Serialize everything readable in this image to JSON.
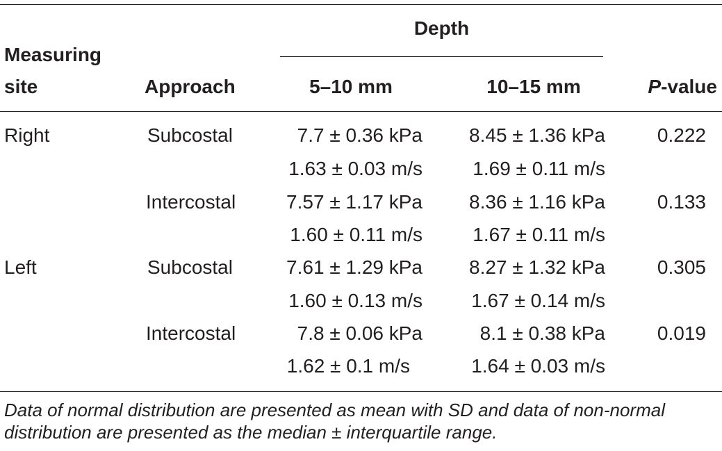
{
  "header": {
    "measuring_site_line1": "Measuring",
    "measuring_site_line2": "site",
    "approach": "Approach",
    "depth": "Depth",
    "depth_5_10": "5–10 mm",
    "depth_10_15": "10–15 mm",
    "p_value_italic": "P",
    "p_value_rest": "-value"
  },
  "rows": [
    {
      "site": "Right",
      "approach": "Subcostal",
      "d1": "7.7 ± 0.36 kPa",
      "d2": "8.45 ± 1.36 kPa",
      "p": "0.222"
    },
    {
      "site": "",
      "approach": "",
      "d1": "1.63 ± 0.03 m/s",
      "d2": "1.69 ± 0.11 m/s",
      "p": ""
    },
    {
      "site": "",
      "approach": "Intercostal",
      "d1": "7.57 ± 1.17 kPa",
      "d2": "8.36 ± 1.16 kPa",
      "p": "0.133"
    },
    {
      "site": "",
      "approach": "",
      "d1": "1.60 ± 0.11 m/s",
      "d2": "1.67 ± 0.11 m/s",
      "p": ""
    },
    {
      "site": "Left",
      "approach": "Subcostal",
      "d1": "7.61 ± 1.29 kPa",
      "d2": "8.27 ± 1.32 kPa",
      "p": "0.305"
    },
    {
      "site": "",
      "approach": "",
      "d1": "1.60 ± 0.13 m/s",
      "d2": "1.67 ± 0.14 m/s",
      "p": ""
    },
    {
      "site": "",
      "approach": "Intercostal",
      "d1": "7.8 ± 0.06 kPa",
      "d2": "8.1 ± 0.38 kPa",
      "p": "0.019"
    },
    {
      "site": "",
      "approach": "",
      "d1": "1.62 ± 0.1 m/s",
      "d2": "1.64 ± 0.03 m/s",
      "p": ""
    }
  ],
  "footnote": {
    "line1": "Data of normal distribution are presented as mean with SD and data of non-normal",
    "line2": "distribution are presented as the median ± interquartile range."
  }
}
